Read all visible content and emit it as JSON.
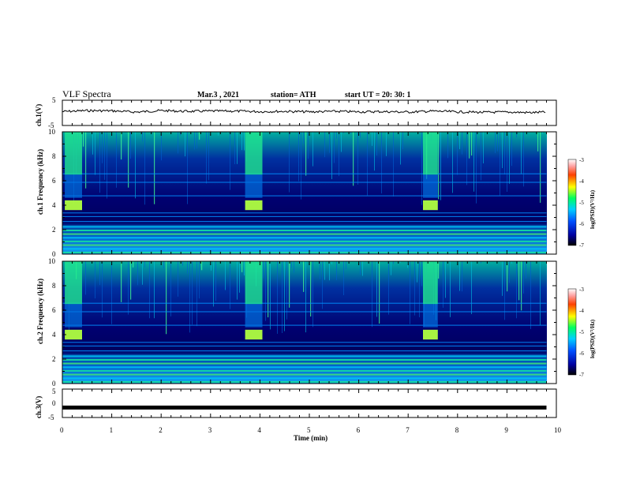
{
  "header": {
    "title": "VLF Spectra",
    "date": "Mar.3 , 2021",
    "station": "station= ATH",
    "start": "start UT = 20: 30: 1"
  },
  "colors": {
    "trace": "#000000",
    "spec_low": "#00008f",
    "spec_mid": "#00e0c0",
    "spec_high": "#ff2000"
  },
  "chart_data": [
    {
      "type": "line",
      "name": "ch1-waveform",
      "ylabel": "ch.1(V)",
      "ylim": [
        -5,
        5
      ],
      "yticks": [
        "5",
        "-5"
      ],
      "x": [
        0,
        0.5,
        1,
        1.5,
        2,
        2.5,
        3,
        3.5,
        4,
        4.5,
        5,
        5.5,
        6,
        6.5,
        7,
        7.5,
        8,
        8.5,
        9,
        9.5,
        9.8
      ],
      "values": [
        0.5,
        0.9,
        0.8,
        0.3,
        0.9,
        0.6,
        0.7,
        0.7,
        0.5,
        0.6,
        0.4,
        0.6,
        0.4,
        0.5,
        0.3,
        0.7,
        0.4,
        0.2,
        0.3,
        0.1,
        0.3
      ]
    },
    {
      "type": "heatmap",
      "name": "ch1-spectrogram",
      "ylabel": "ch.1 Frequency (kHz)",
      "ylim": [
        0,
        10
      ],
      "yticks": [
        "0",
        "2",
        "4",
        "6",
        "8",
        "10"
      ],
      "xlim": [
        0,
        10
      ],
      "time_end_min": 9.8,
      "colorbar": {
        "label": "log(PSD)(V²/Hz)",
        "range": [
          -7,
          -3
        ],
        "ticks": [
          "-3",
          "-4",
          "-5",
          "-6",
          "-7"
        ]
      },
      "bright_intervals_min": [
        [
          0.05,
          0.4
        ],
        [
          3.7,
          4.05
        ],
        [
          7.3,
          7.6
        ]
      ]
    },
    {
      "type": "heatmap",
      "name": "ch2-spectrogram",
      "ylabel": "ch.2 Frequency (kHz)",
      "ylim": [
        0,
        10
      ],
      "yticks": [
        "0",
        "2",
        "4",
        "6",
        "8",
        "10"
      ],
      "xlim": [
        0,
        10
      ],
      "time_end_min": 9.8,
      "colorbar": {
        "label": "log(PSD)(V²/Hz)",
        "range": [
          -7,
          -3
        ],
        "ticks": [
          "-3",
          "-4",
          "-5",
          "-6",
          "-7"
        ]
      },
      "bright_intervals_min": [
        [
          0.05,
          0.4
        ],
        [
          3.7,
          4.05
        ],
        [
          7.3,
          7.6
        ]
      ]
    },
    {
      "type": "line",
      "name": "ch3-waveform",
      "ylabel": "ch.3(V)",
      "ylim": [
        -5,
        5
      ],
      "yticks": [
        "5",
        "0",
        "-5"
      ],
      "x": [
        0,
        9.8
      ],
      "values": [
        -1.5,
        -1.5
      ],
      "xlabel": "Time (min)",
      "xlim": [
        0,
        10
      ],
      "xticks": [
        "0",
        "1",
        "2",
        "3",
        "4",
        "5",
        "6",
        "7",
        "8",
        "9",
        "10"
      ]
    }
  ]
}
